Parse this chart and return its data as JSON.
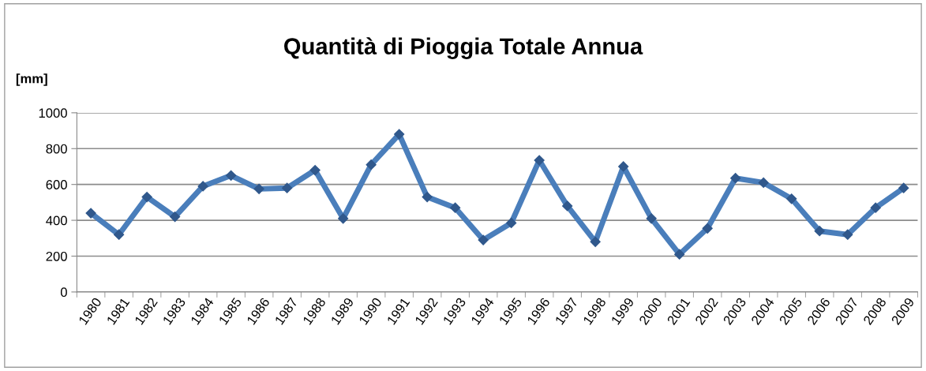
{
  "chart_data": {
    "type": "line",
    "title": "Quantità di Pioggia Totale Annua",
    "ylabel": "[mm]",
    "categories": [
      "1980",
      "1981",
      "1982",
      "1983",
      "1984",
      "1985",
      "1986",
      "1987",
      "1988",
      "1989",
      "1990",
      "1991",
      "1992",
      "1993",
      "1994",
      "1995",
      "1996",
      "1997",
      "1998",
      "1999",
      "2000",
      "2001",
      "2002",
      "2003",
      "2004",
      "2005",
      "2006",
      "2007",
      "2008",
      "2009"
    ],
    "series": [
      {
        "color": "#4a7ebb",
        "values": [
          440,
          320,
          530,
          420,
          590,
          650,
          575,
          580,
          680,
          410,
          710,
          880,
          530,
          470,
          290,
          385,
          735,
          480,
          280,
          700,
          410,
          210,
          355,
          635,
          610,
          520,
          340,
          320,
          470,
          580
        ]
      }
    ],
    "ylim": [
      0,
      1000
    ],
    "yticks": [
      0,
      200,
      400,
      600,
      800,
      1000
    ],
    "grid": "y",
    "marker": "diamond",
    "line_style": "solid"
  }
}
